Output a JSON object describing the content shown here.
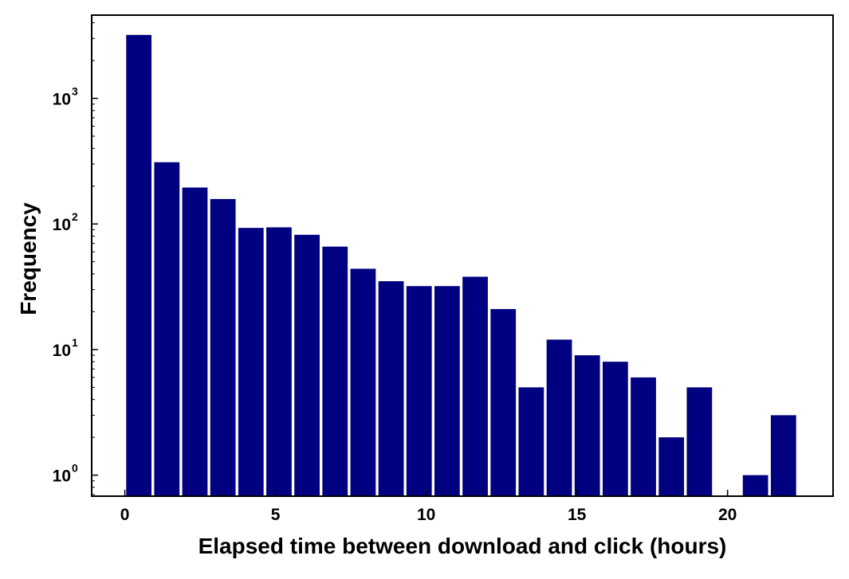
{
  "chart_data": {
    "type": "bar",
    "title": "",
    "xlabel": "Elapsed time between download and click (hours)",
    "ylabel": "Frequency",
    "x_scale": "linear",
    "y_scale": "log",
    "xlim": [
      -1.1,
      23.5
    ],
    "ylim": [
      0.68,
      4600
    ],
    "x_ticks": [
      0,
      5,
      10,
      15,
      20
    ],
    "y_ticks": [
      {
        "value": 1,
        "base": "10",
        "exponent": "0"
      },
      {
        "value": 10,
        "base": "10",
        "exponent": "1"
      },
      {
        "value": 100,
        "base": "10",
        "exponent": "2"
      },
      {
        "value": 1000,
        "base": "10",
        "exponent": "3"
      }
    ],
    "bin_width": 0.93,
    "bar_color": "#000080",
    "grid": false,
    "legend": "none",
    "bins": [
      {
        "start": 0.0,
        "value": 3200
      },
      {
        "start": 0.93,
        "value": 310
      },
      {
        "start": 1.86,
        "value": 195
      },
      {
        "start": 2.79,
        "value": 158
      },
      {
        "start": 3.72,
        "value": 93
      },
      {
        "start": 4.65,
        "value": 94
      },
      {
        "start": 5.58,
        "value": 82
      },
      {
        "start": 6.51,
        "value": 66
      },
      {
        "start": 7.44,
        "value": 44
      },
      {
        "start": 8.37,
        "value": 35
      },
      {
        "start": 9.3,
        "value": 32
      },
      {
        "start": 10.23,
        "value": 32
      },
      {
        "start": 11.16,
        "value": 38
      },
      {
        "start": 12.09,
        "value": 21
      },
      {
        "start": 13.02,
        "value": 5
      },
      {
        "start": 13.95,
        "value": 12
      },
      {
        "start": 14.88,
        "value": 9
      },
      {
        "start": 15.81,
        "value": 8
      },
      {
        "start": 16.74,
        "value": 6
      },
      {
        "start": 17.67,
        "value": 2
      },
      {
        "start": 18.6,
        "value": 5
      },
      {
        "start": 19.53,
        "value": 0
      },
      {
        "start": 20.46,
        "value": 1
      },
      {
        "start": 21.39,
        "value": 3
      }
    ]
  }
}
